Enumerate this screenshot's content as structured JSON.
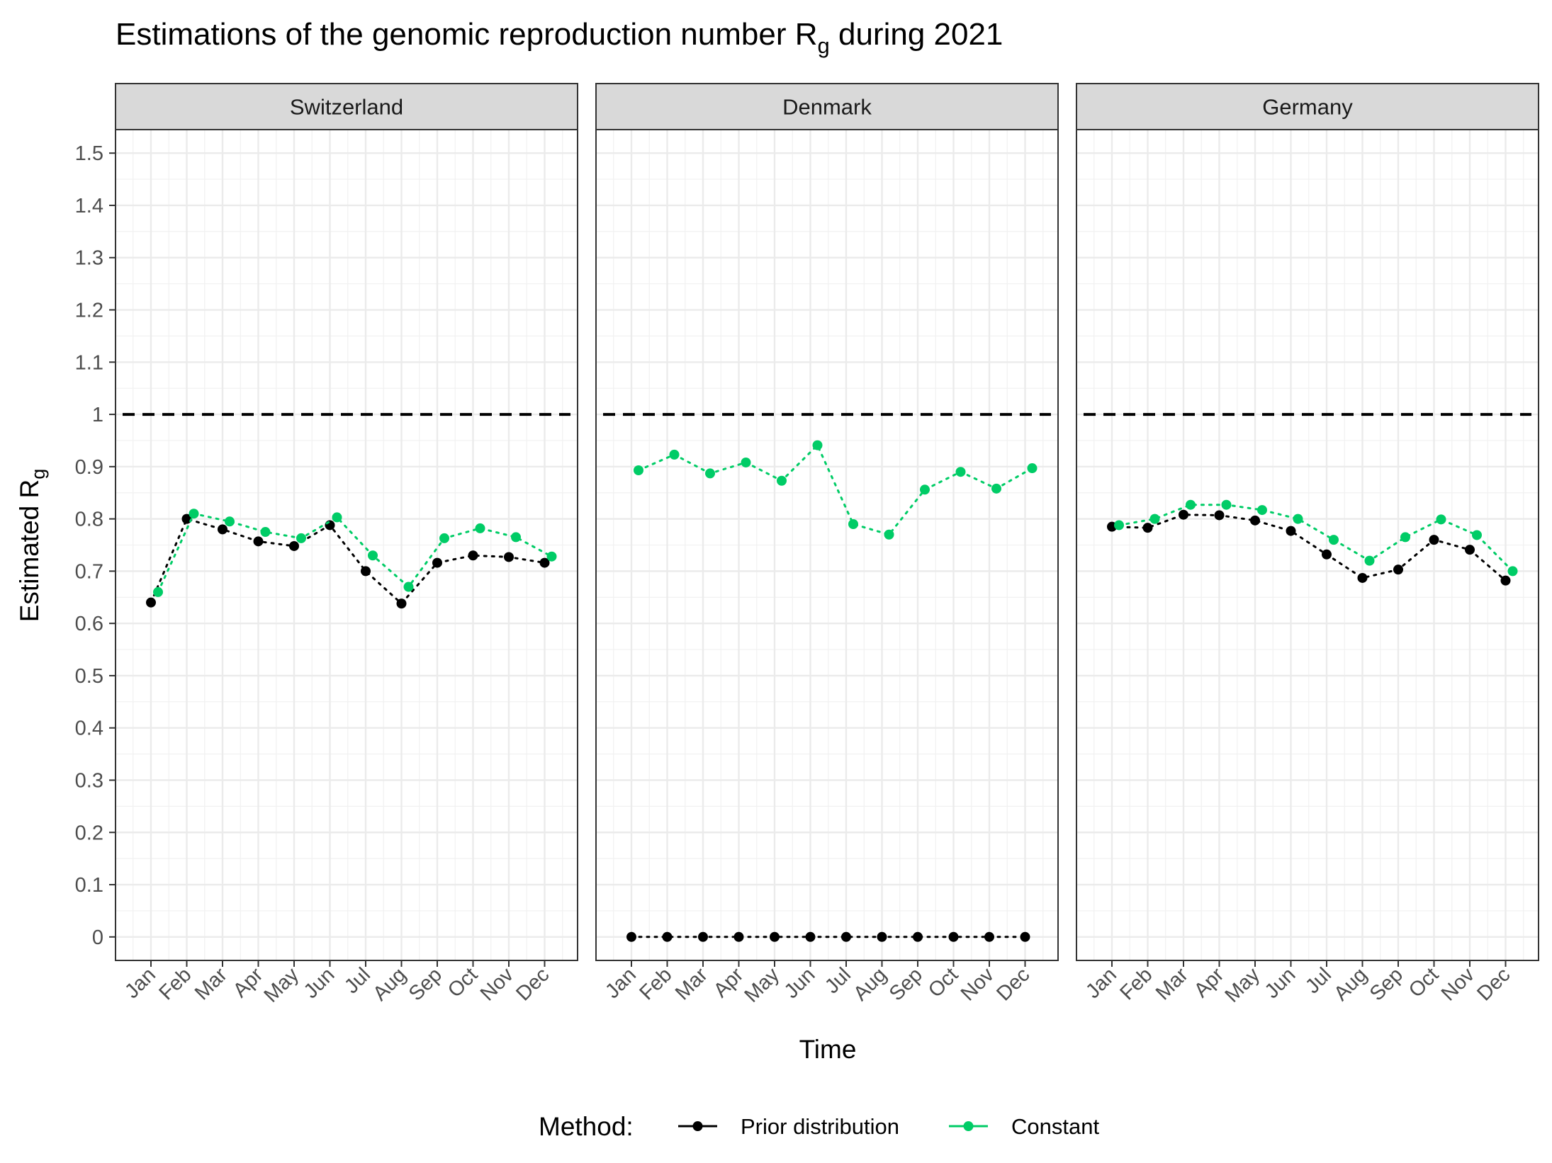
{
  "chart_data": {
    "type": "line",
    "title": "Estimations of the genomic reproduction number R",
    "title_subscript": "g",
    "title_suffix": " during 2021",
    "xlabel": "Time",
    "ylabel": "Estimated R",
    "ylabel_subscript": "g",
    "ylim": [
      -0.045,
      1.545
    ],
    "yticks": [
      0,
      0.1,
      0.2,
      0.3,
      0.4,
      0.5,
      0.6,
      0.7,
      0.8,
      0.9,
      1,
      1.1,
      1.2,
      1.3,
      1.4,
      1.5
    ],
    "ytick_labels": [
      "0",
      "0.1",
      "0.2",
      "0.3",
      "0.4",
      "0.5",
      "0.6",
      "0.7",
      "0.8",
      "0.9",
      "1",
      "1.1",
      "1.2",
      "1.3",
      "1.4",
      "1.5"
    ],
    "categories": [
      "Jan",
      "Feb",
      "Mar",
      "Apr",
      "May",
      "Jun",
      "Jul",
      "Aug",
      "Sep",
      "Oct",
      "Nov",
      "Dec"
    ],
    "reference_line": {
      "y": 1,
      "style": "dashed",
      "color": "#000000"
    },
    "grid": true,
    "legend": {
      "title": "Method:",
      "position": "bottom",
      "entries": [
        {
          "label": "Prior distribution",
          "color": "#000000"
        },
        {
          "label": "Constant",
          "color": "#00cc66"
        }
      ]
    },
    "panels": [
      {
        "label": "Switzerland",
        "series": [
          {
            "name": "Prior distribution",
            "color": "#000000",
            "values": [
              0.64,
              0.8,
              0.78,
              0.757,
              0.748,
              0.788,
              0.7,
              0.638,
              0.716,
              0.73,
              0.727,
              0.716
            ]
          },
          {
            "name": "Constant",
            "color": "#00cc66",
            "values": [
              0.66,
              0.81,
              0.795,
              0.775,
              0.763,
              0.803,
              0.73,
              0.67,
              0.763,
              0.782,
              0.765,
              0.728
            ]
          }
        ]
      },
      {
        "label": "Denmark",
        "series": [
          {
            "name": "Prior distribution",
            "color": "#000000",
            "values": [
              0,
              0,
              0,
              0,
              0,
              0,
              0,
              0,
              0,
              0,
              0,
              0
            ]
          },
          {
            "name": "Constant",
            "color": "#00cc66",
            "values": [
              0.893,
              0.923,
              0.887,
              0.908,
              0.873,
              0.941,
              0.79,
              0.77,
              0.856,
              0.89,
              0.858,
              0.897
            ]
          }
        ]
      },
      {
        "label": "Germany",
        "series": [
          {
            "name": "Prior distribution",
            "color": "#000000",
            "values": [
              0.785,
              0.783,
              0.808,
              0.807,
              0.797,
              0.777,
              0.732,
              0.687,
              0.703,
              0.76,
              0.741,
              0.682
            ]
          },
          {
            "name": "Constant",
            "color": "#00cc66",
            "values": [
              0.788,
              0.8,
              0.827,
              0.827,
              0.817,
              0.8,
              0.76,
              0.72,
              0.765,
              0.799,
              0.769,
              0.7
            ]
          }
        ]
      }
    ]
  }
}
